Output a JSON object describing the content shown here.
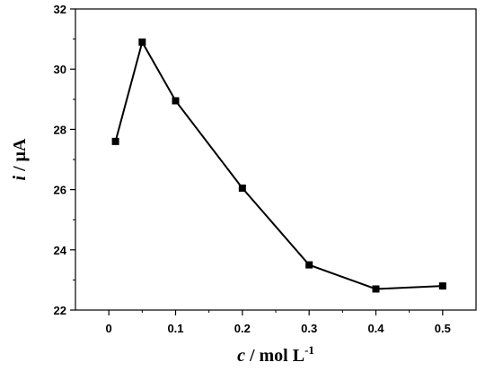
{
  "chart_data": {
    "type": "line",
    "marker": "square",
    "series": [
      {
        "x": [
          0.01,
          0.05,
          0.1,
          0.2,
          0.3,
          0.4,
          0.5
        ],
        "y": [
          27.6,
          30.9,
          28.95,
          26.05,
          23.5,
          22.7,
          22.8
        ]
      }
    ],
    "xlim": [
      -0.05,
      0.55
    ],
    "ylim": [
      22,
      32
    ],
    "xticks": [
      "0",
      "0.1",
      "0.2",
      "0.3",
      "0.4",
      "0.5"
    ],
    "yticks": [
      "22",
      "24",
      "26",
      "28",
      "30",
      "32"
    ],
    "xlabel": {
      "var": "c",
      "rest": " / mol L",
      "sup": "-1"
    },
    "ylabel": {
      "var": "i",
      "rest": " / μA"
    },
    "grid": false,
    "legend": "none",
    "colors": {
      "line": "#000000",
      "marker": "#000000",
      "axis": "#000000"
    }
  }
}
